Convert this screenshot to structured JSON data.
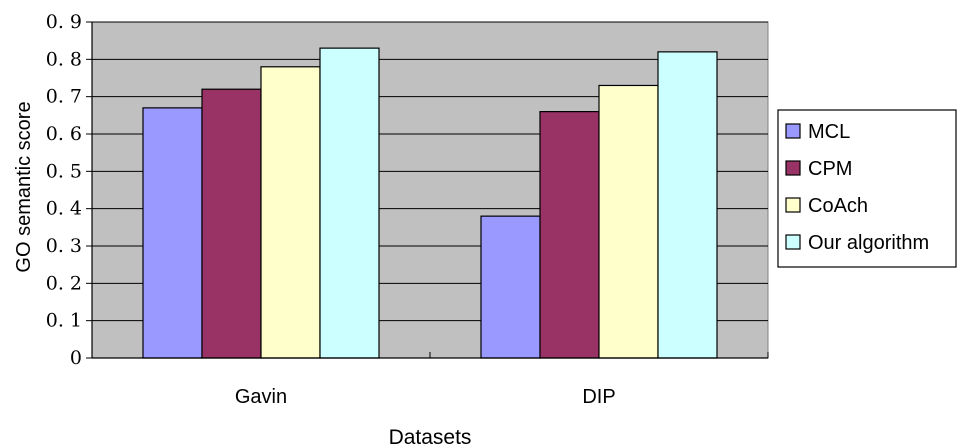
{
  "chart_data": {
    "type": "bar",
    "title": "",
    "xlabel": "Datasets",
    "ylabel": "GO semantic score",
    "categories": [
      "Gavin",
      "DIP"
    ],
    "series": [
      {
        "name": "MCL",
        "values": [
          0.67,
          0.38
        ],
        "color": "#9999ff"
      },
      {
        "name": "CPM",
        "values": [
          0.72,
          0.66
        ],
        "color": "#993366"
      },
      {
        "name": "CoAch",
        "values": [
          0.78,
          0.73
        ],
        "color": "#ffffcc"
      },
      {
        "name": "Our algorithm",
        "values": [
          0.83,
          0.82
        ],
        "color": "#ccffff"
      }
    ],
    "ylim": [
      0,
      0.9
    ],
    "yticks": [
      "0",
      "0. 1",
      "0. 2",
      "0. 3",
      "0. 4",
      "0. 5",
      "0. 6",
      "0. 7",
      "0. 8",
      "0. 9"
    ],
    "grid": true,
    "plot_background": "#c0c0c0",
    "legend_position": "right"
  }
}
